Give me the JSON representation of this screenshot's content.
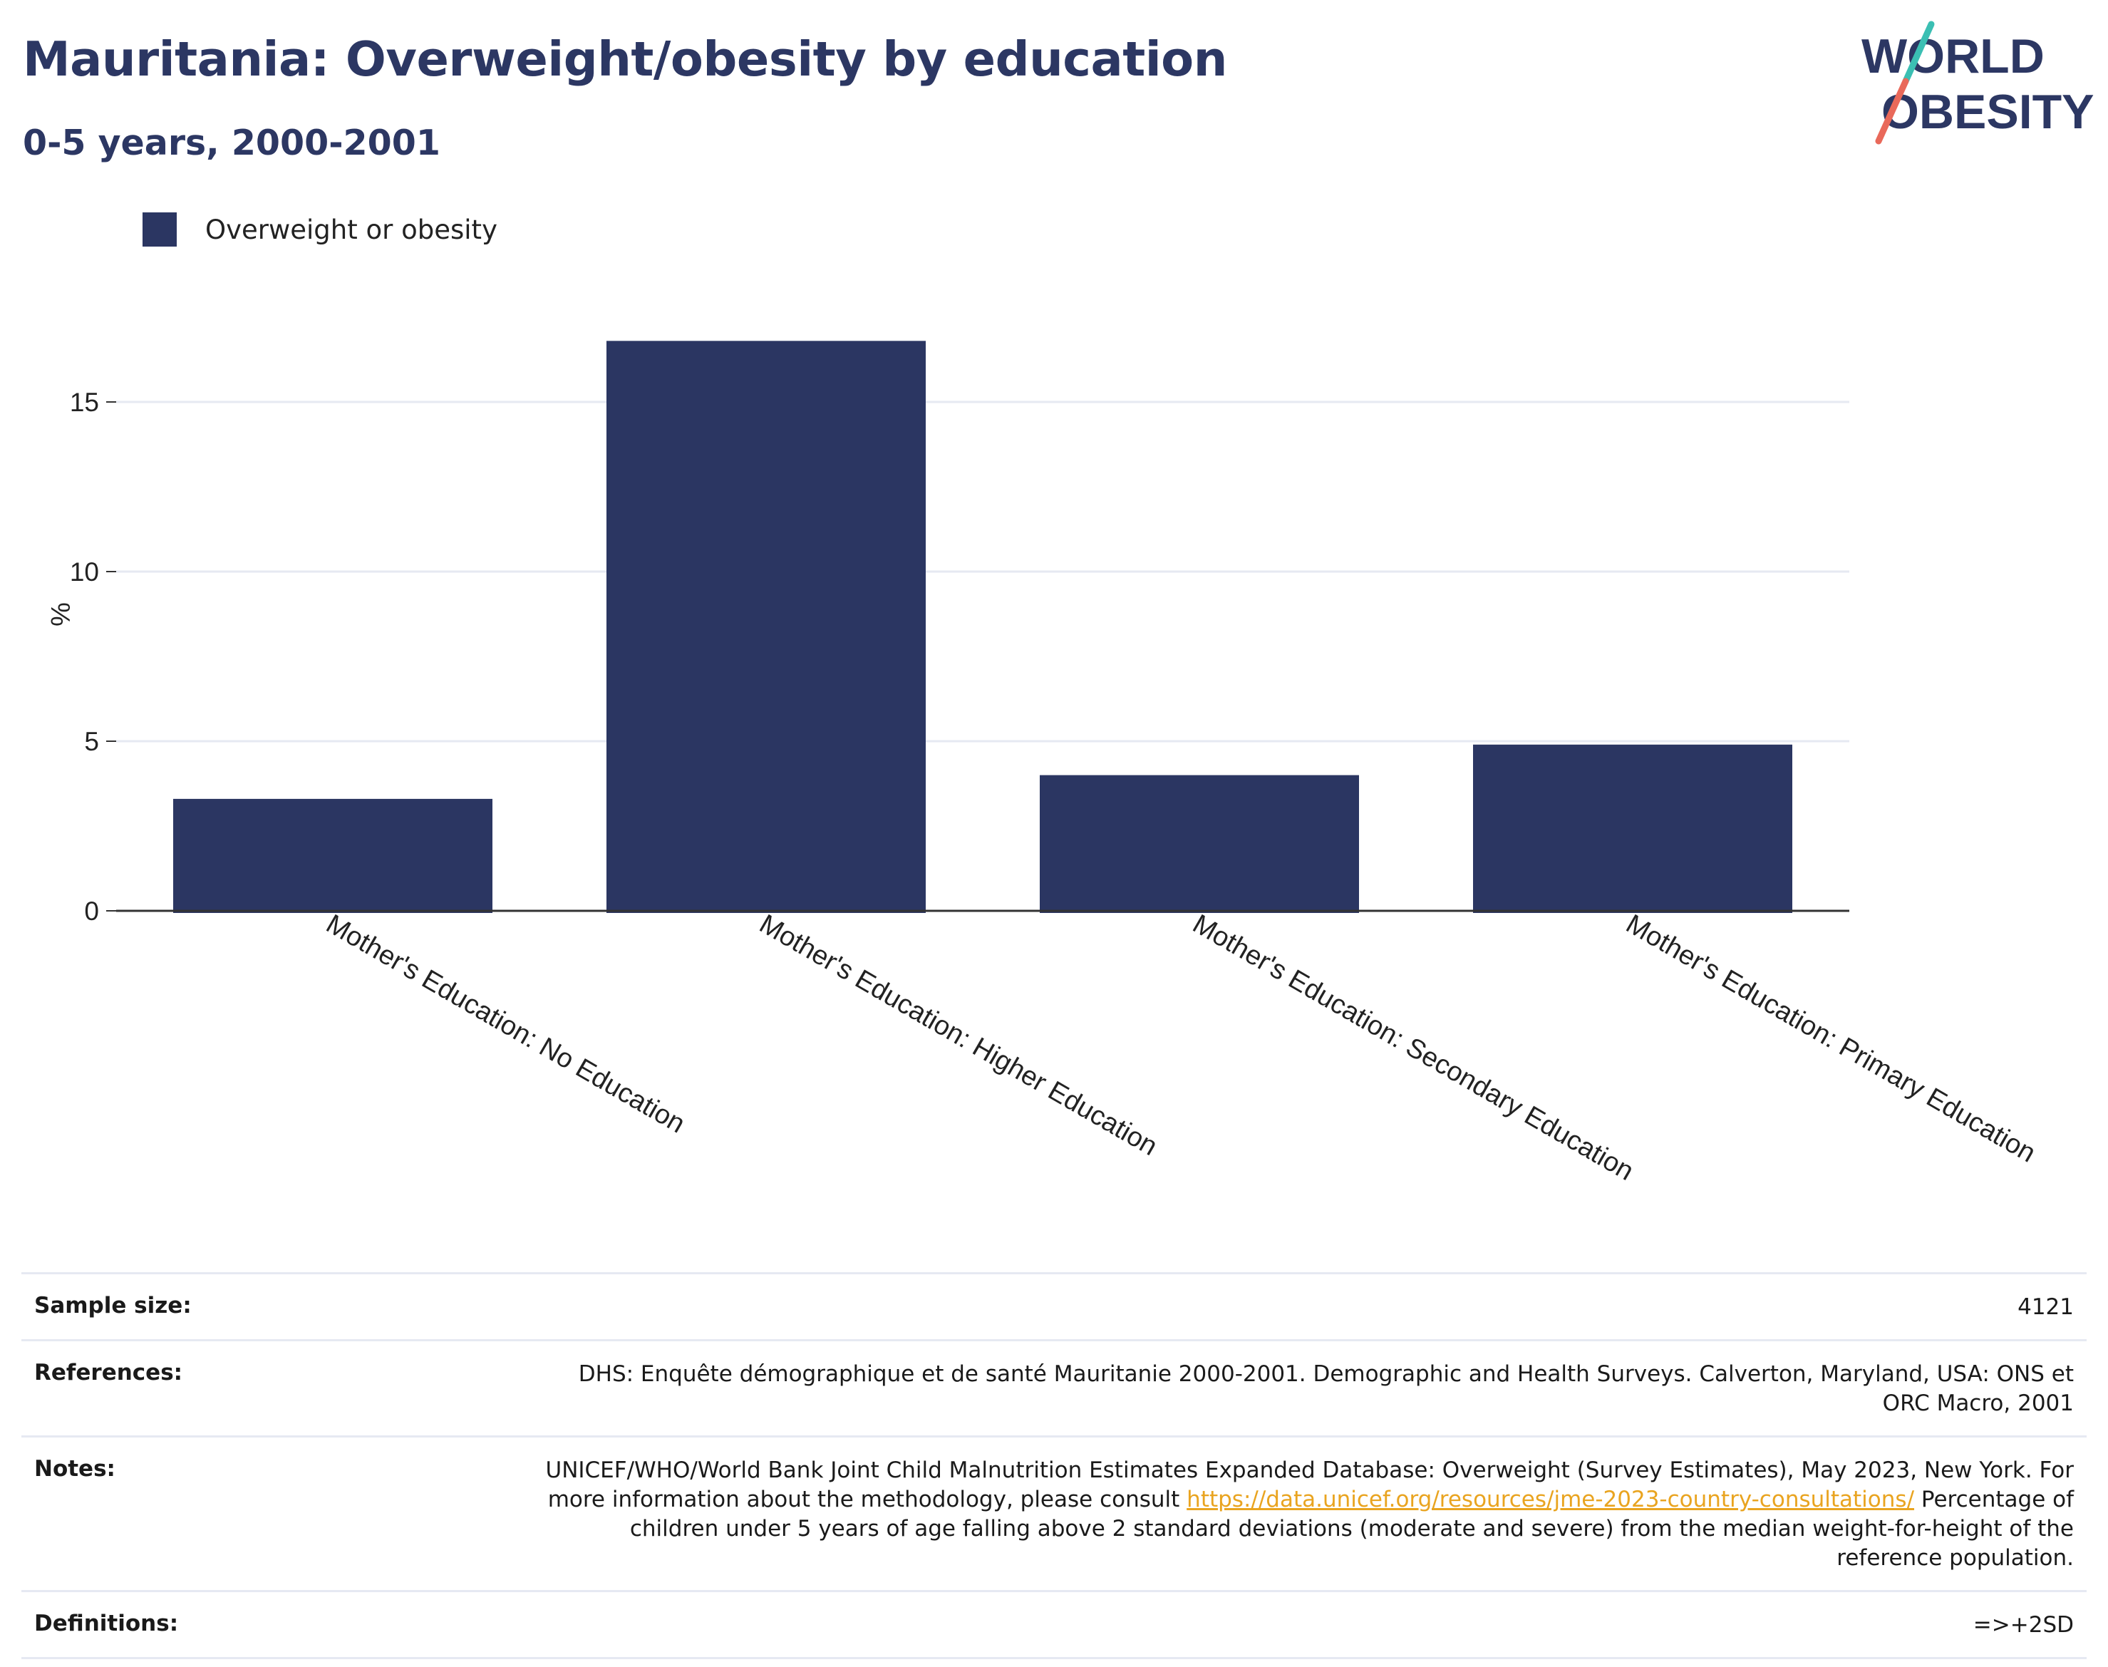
{
  "header": {
    "title": "Mauritania: Overweight/obesity by education",
    "subtitle": "0-5 years, 2000-2001",
    "logo_line1": "WORLD",
    "logo_line2": "OBESITY"
  },
  "legend": {
    "label": "Overweight or obesity"
  },
  "colors": {
    "bar": "#2b3662",
    "title": "#2c3763",
    "logo_teal": "#3bbfb3",
    "logo_coral": "#e9695a",
    "link": "#e9a420",
    "grid": "#e6e9f2"
  },
  "chart_data": {
    "type": "bar",
    "categories": [
      "Mother's Education: No Education",
      "Mother's Education: Higher Education",
      "Mother's Education: Secondary Education",
      "Mother's Education: Primary Education"
    ],
    "series": [
      {
        "name": "Overweight or obesity",
        "values": [
          3.3,
          16.8,
          4.0,
          4.9
        ]
      }
    ],
    "ylabel": "%",
    "yticks": [
      0,
      5,
      10,
      15
    ],
    "ylim": [
      0,
      17.5
    ],
    "grid": true,
    "legend_position": "top-left"
  },
  "info": {
    "sample_size_label": "Sample size:",
    "sample_size_value": "4121",
    "references_label": "References:",
    "references_value": "DHS: Enquête démographique et de santé Mauritanie 2000-2001. Demographic and Health Surveys. Calverton, Maryland, USA: ONS et ORC Macro, 2001",
    "notes_label": "Notes:",
    "notes_text_before": "UNICEF/WHO/World Bank Joint Child Malnutrition Estimates Expanded Database: Overweight (Survey Estimates), May 2023, New York. For more information about the methodology, please consult ",
    "notes_link": "https://data.unicef.org/resources/jme-2023-country-consultations/",
    "notes_text_after": " Percentage of children under 5 years of age falling above 2 standard deviations (moderate and severe) from the median weight-for-height of the reference population.",
    "definitions_label": "Definitions:",
    "definitions_value": "=>+2SD"
  }
}
